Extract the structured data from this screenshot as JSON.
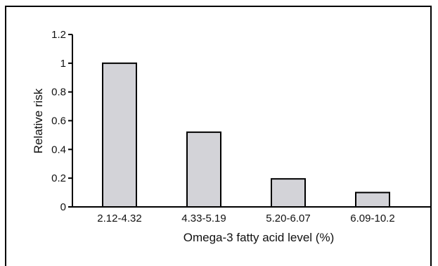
{
  "chart_data": {
    "type": "bar",
    "categories": [
      "2.12-4.32",
      "4.33-5.19",
      "5.20-6.07",
      "6.09-10.2"
    ],
    "values": [
      1.0,
      0.52,
      0.195,
      0.1
    ],
    "xlabel": "Omega-3 fatty acid level (%)",
    "ylabel": "Relative risk",
    "ylim": [
      0,
      1.2
    ],
    "yticks": [
      "0",
      "0.2",
      "0.4",
      "0.6",
      "0.8",
      "1",
      "1.2"
    ],
    "bar_color": "#d3d3d8",
    "bar_stroke": "#000000",
    "grid": false
  }
}
